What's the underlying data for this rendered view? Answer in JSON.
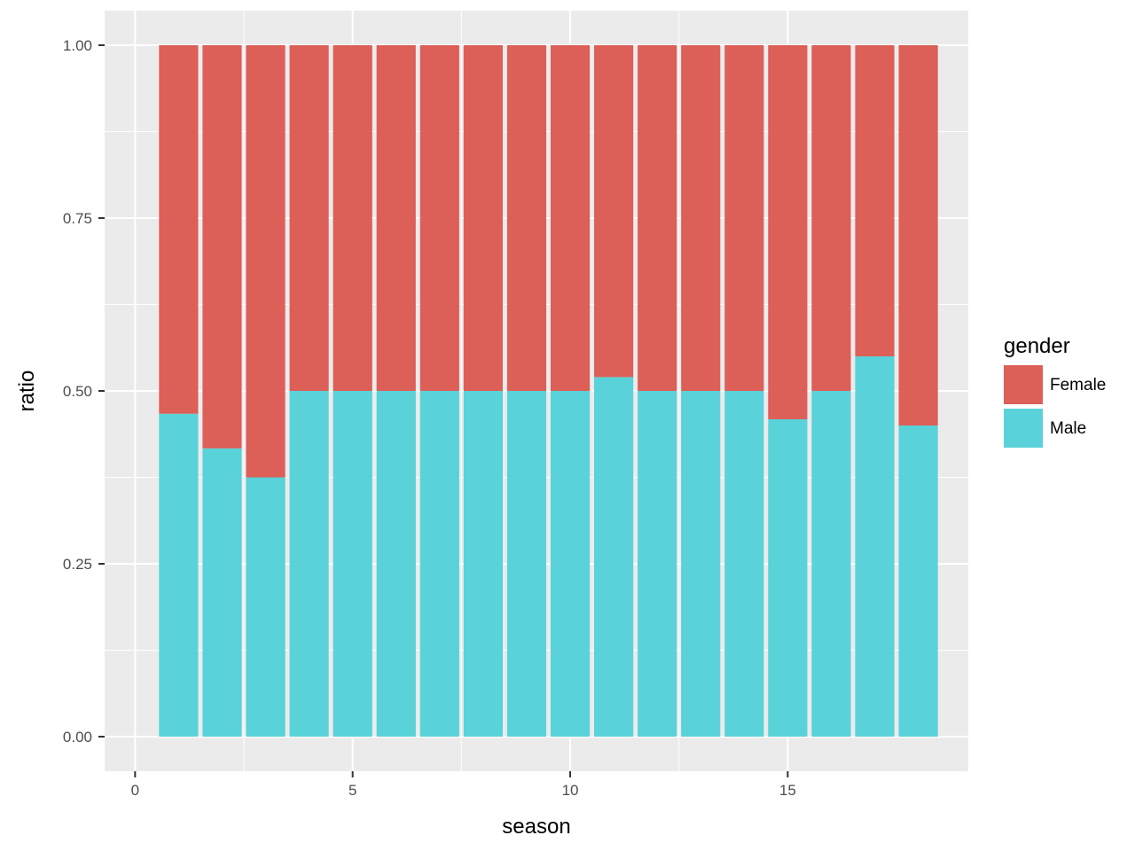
{
  "chart_data": {
    "type": "bar",
    "stacked": true,
    "position": "fill",
    "x": [
      1,
      2,
      3,
      4,
      5,
      6,
      7,
      8,
      9,
      10,
      11,
      12,
      13,
      14,
      15,
      16,
      17,
      18
    ],
    "series": [
      {
        "name": "Female",
        "color": "#DC5F58",
        "values": [
          0.533,
          0.583,
          0.625,
          0.5,
          0.5,
          0.5,
          0.5,
          0.5,
          0.5,
          0.5,
          0.48,
          0.5,
          0.5,
          0.5,
          0.541,
          0.5,
          0.45,
          0.55
        ]
      },
      {
        "name": "Male",
        "color": "#59D2D9",
        "values": [
          0.467,
          0.417,
          0.375,
          0.5,
          0.5,
          0.5,
          0.5,
          0.5,
          0.5,
          0.5,
          0.52,
          0.5,
          0.5,
          0.5,
          0.459,
          0.5,
          0.55,
          0.45
        ]
      }
    ],
    "xlabel": "season",
    "ylabel": "ratio",
    "legend_title": "gender",
    "legend_position": "right",
    "xlim": [
      -0.7,
      19.15
    ],
    "ylim": [
      -0.05,
      1.05
    ],
    "x_ticks": [
      0,
      5,
      10,
      15
    ],
    "x_tick_labels": [
      "0",
      "5",
      "10",
      "15"
    ],
    "y_ticks": [
      0,
      0.25,
      0.5,
      0.75,
      1
    ],
    "y_tick_labels": [
      "0.00",
      "0.25",
      "0.50",
      "0.75",
      "1.00"
    ],
    "grid": true,
    "panel_background": "#EBEBEB"
  }
}
